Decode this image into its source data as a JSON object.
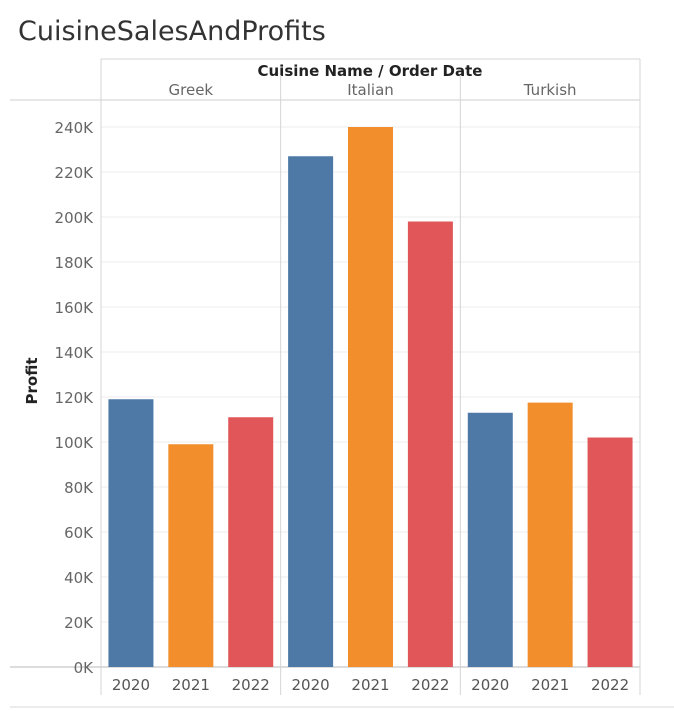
{
  "chart_data": {
    "type": "bar",
    "title": "CuisineSalesAndProfits",
    "column_header": "Cuisine Name  /  Order Date",
    "ylabel": "Profit",
    "ylim": [
      0,
      245000
    ],
    "yticks": [
      0,
      20000,
      40000,
      60000,
      80000,
      100000,
      120000,
      140000,
      160000,
      180000,
      200000,
      220000,
      240000
    ],
    "ytick_labels": [
      "0K",
      "20K",
      "40K",
      "60K",
      "80K",
      "100K",
      "120K",
      "140K",
      "160K",
      "180K",
      "200K",
      "220K",
      "240K"
    ],
    "grid": true,
    "years": [
      "2020",
      "2021",
      "2022"
    ],
    "year_colors": [
      "#4e79a7",
      "#f28e2b",
      "#e15759"
    ],
    "groups": [
      {
        "name": "Greek",
        "values": [
          119000,
          99000,
          111000
        ]
      },
      {
        "name": "Italian",
        "values": [
          227000,
          240000,
          198000
        ]
      },
      {
        "name": "Turkish",
        "values": [
          113000,
          117500,
          102000
        ]
      }
    ]
  }
}
